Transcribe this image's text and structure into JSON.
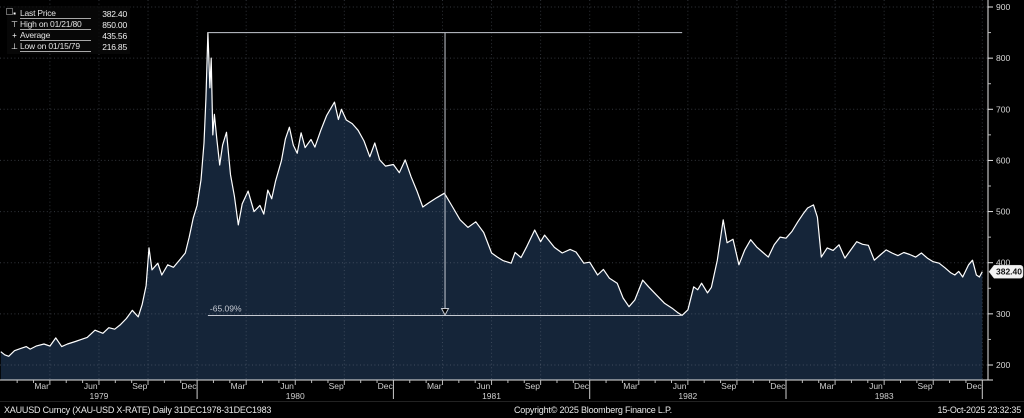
{
  "legend": {
    "rows": [
      {
        "icon": "last-price-marker",
        "glyph": "▪",
        "label": "Last Price",
        "value": "382.40"
      },
      {
        "icon": "high-marker",
        "glyph": "⊤",
        "label": "High on 01/21/80",
        "value": "850.00"
      },
      {
        "icon": "average-marker",
        "glyph": "+",
        "label": "Average",
        "value": "435.56"
      },
      {
        "icon": "low-marker",
        "glyph": "⊥",
        "label": "Low on 01/15/79",
        "value": "216.85"
      }
    ]
  },
  "chart_data": {
    "type": "area",
    "title": "XAUUSD Curncy (XAU-USD X-RATE)",
    "period": "Daily 31DEC1978-31DEC1983",
    "colors": {
      "line": "#ffffff",
      "fill": "#152539",
      "grid": "#7a8290",
      "axis": "#d9d9d9",
      "annotation": "#c6cad2"
    },
    "x_axis": {
      "months": [
        "Mar",
        "Jun",
        "Sep",
        "Dec",
        "Mar",
        "Jun",
        "Sep",
        "Dec",
        "Mar",
        "Jun",
        "Sep",
        "Dec",
        "Mar",
        "Jun",
        "Sep",
        "Dec",
        "Mar",
        "Jun",
        "Sep",
        "Dec"
      ],
      "years": [
        "1979",
        "1980",
        "1981",
        "1982",
        "1983"
      ]
    },
    "y_axis": {
      "ticks": [
        200,
        300,
        400,
        500,
        600,
        700,
        800,
        900
      ],
      "minor_ticks": [
        250,
        350,
        450,
        550,
        650,
        750,
        850
      ],
      "range": [
        198,
        905
      ]
    },
    "last_price": {
      "price": 382.4,
      "label": "382.40"
    },
    "annotation": {
      "label": "-65.09%",
      "high_price": 850,
      "low_price": 296.8,
      "from_t": 1.055,
      "to_t": 3.471
    },
    "stats": {
      "last": 382.4,
      "high": 850.0,
      "high_date": "01/21/80",
      "average": 435.56,
      "low": 216.85,
      "low_date": "01/15/79"
    },
    "series": [
      {
        "name": "XAUUSD",
        "points": [
          [
            0,
            226
          ],
          [
            0.02,
            220
          ],
          [
            0.04,
            217
          ],
          [
            0.07,
            228
          ],
          [
            0.1,
            232
          ],
          [
            0.13,
            236
          ],
          [
            0.15,
            231
          ],
          [
            0.18,
            237
          ],
          [
            0.22,
            241
          ],
          [
            0.25,
            237
          ],
          [
            0.28,
            253
          ],
          [
            0.31,
            236
          ],
          [
            0.34,
            241
          ],
          [
            0.38,
            246
          ],
          [
            0.41,
            250
          ],
          [
            0.44,
            254
          ],
          [
            0.48,
            268
          ],
          [
            0.52,
            262
          ],
          [
            0.55,
            273
          ],
          [
            0.58,
            270
          ],
          [
            0.61,
            279
          ],
          [
            0.64,
            291
          ],
          [
            0.67,
            307
          ],
          [
            0.7,
            294
          ],
          [
            0.72,
            318
          ],
          [
            0.74,
            355
          ],
          [
            0.755,
            429
          ],
          [
            0.77,
            386
          ],
          [
            0.8,
            399
          ],
          [
            0.82,
            376
          ],
          [
            0.85,
            396
          ],
          [
            0.88,
            391
          ],
          [
            0.91,
            405
          ],
          [
            0.94,
            419
          ],
          [
            0.96,
            450
          ],
          [
            0.98,
            487
          ],
          [
            1.0,
            512
          ],
          [
            1.02,
            562
          ],
          [
            1.035,
            634
          ],
          [
            1.045,
            720
          ],
          [
            1.055,
            850
          ],
          [
            1.065,
            742
          ],
          [
            1.072,
            800
          ],
          [
            1.08,
            650
          ],
          [
            1.088,
            690
          ],
          [
            1.1,
            644
          ],
          [
            1.115,
            591
          ],
          [
            1.13,
            630
          ],
          [
            1.15,
            655
          ],
          [
            1.17,
            572
          ],
          [
            1.19,
            530
          ],
          [
            1.21,
            474
          ],
          [
            1.23,
            515
          ],
          [
            1.26,
            540
          ],
          [
            1.29,
            500
          ],
          [
            1.32,
            512
          ],
          [
            1.34,
            495
          ],
          [
            1.36,
            542
          ],
          [
            1.38,
            525
          ],
          [
            1.4,
            560
          ],
          [
            1.43,
            600
          ],
          [
            1.45,
            642
          ],
          [
            1.47,
            665
          ],
          [
            1.49,
            630
          ],
          [
            1.51,
            614
          ],
          [
            1.53,
            654
          ],
          [
            1.55,
            625
          ],
          [
            1.58,
            641
          ],
          [
            1.6,
            626
          ],
          [
            1.63,
            659
          ],
          [
            1.66,
            688
          ],
          [
            1.7,
            714
          ],
          [
            1.72,
            680
          ],
          [
            1.735,
            700
          ],
          [
            1.76,
            679
          ],
          [
            1.79,
            672
          ],
          [
            1.82,
            659
          ],
          [
            1.85,
            638
          ],
          [
            1.88,
            607
          ],
          [
            1.905,
            634
          ],
          [
            1.93,
            601
          ],
          [
            1.96,
            589
          ],
          [
            2.0,
            592
          ],
          [
            2.03,
            576
          ],
          [
            2.06,
            601
          ],
          [
            2.09,
            568
          ],
          [
            2.12,
            540
          ],
          [
            2.15,
            509
          ],
          [
            2.18,
            517
          ],
          [
            2.22,
            527
          ],
          [
            2.26,
            536
          ],
          [
            2.3,
            510
          ],
          [
            2.34,
            484
          ],
          [
            2.38,
            469
          ],
          [
            2.42,
            480
          ],
          [
            2.46,
            459
          ],
          [
            2.5,
            419
          ],
          [
            2.53,
            411
          ],
          [
            2.56,
            404
          ],
          [
            2.6,
            399
          ],
          [
            2.62,
            420
          ],
          [
            2.65,
            410
          ],
          [
            2.68,
            432
          ],
          [
            2.72,
            464
          ],
          [
            2.75,
            441
          ],
          [
            2.77,
            454
          ],
          [
            2.82,
            430
          ],
          [
            2.86,
            419
          ],
          [
            2.9,
            426
          ],
          [
            2.93,
            421
          ],
          [
            2.97,
            399
          ],
          [
            3.0,
            401
          ],
          [
            3.04,
            376
          ],
          [
            3.07,
            387
          ],
          [
            3.1,
            370
          ],
          [
            3.14,
            360
          ],
          [
            3.17,
            331
          ],
          [
            3.2,
            314
          ],
          [
            3.23,
            327
          ],
          [
            3.27,
            366
          ],
          [
            3.3,
            353
          ],
          [
            3.34,
            337
          ],
          [
            3.38,
            321
          ],
          [
            3.42,
            311
          ],
          [
            3.45,
            302
          ],
          [
            3.47,
            297
          ],
          [
            3.5,
            308
          ],
          [
            3.53,
            353
          ],
          [
            3.55,
            347
          ],
          [
            3.57,
            360
          ],
          [
            3.6,
            341
          ],
          [
            3.62,
            352
          ],
          [
            3.65,
            405
          ],
          [
            3.68,
            484
          ],
          [
            3.7,
            439
          ],
          [
            3.73,
            446
          ],
          [
            3.76,
            396
          ],
          [
            3.79,
            425
          ],
          [
            3.82,
            445
          ],
          [
            3.85,
            431
          ],
          [
            3.88,
            421
          ],
          [
            3.91,
            411
          ],
          [
            3.94,
            435
          ],
          [
            3.97,
            450
          ],
          [
            4.0,
            448
          ],
          [
            4.03,
            461
          ],
          [
            4.06,
            480
          ],
          [
            4.09,
            497
          ],
          [
            4.11,
            507
          ],
          [
            4.14,
            513
          ],
          [
            4.16,
            489
          ],
          [
            4.18,
            411
          ],
          [
            4.21,
            429
          ],
          [
            4.24,
            424
          ],
          [
            4.27,
            435
          ],
          [
            4.3,
            409
          ],
          [
            4.33,
            425
          ],
          [
            4.36,
            441
          ],
          [
            4.39,
            436
          ],
          [
            4.42,
            434
          ],
          [
            4.45,
            405
          ],
          [
            4.48,
            415
          ],
          [
            4.51,
            425
          ],
          [
            4.54,
            419
          ],
          [
            4.57,
            414
          ],
          [
            4.6,
            420
          ],
          [
            4.63,
            416
          ],
          [
            4.66,
            411
          ],
          [
            4.69,
            419
          ],
          [
            4.72,
            409
          ],
          [
            4.75,
            402
          ],
          [
            4.78,
            399
          ],
          [
            4.81,
            390
          ],
          [
            4.84,
            380
          ],
          [
            4.86,
            376
          ],
          [
            4.88,
            383
          ],
          [
            4.9,
            372
          ],
          [
            4.93,
            396
          ],
          [
            4.95,
            405
          ],
          [
            4.97,
            376
          ],
          [
            4.985,
            372
          ],
          [
            5.0,
            382.4
          ]
        ]
      }
    ]
  },
  "footer": {
    "left": "XAUUSD Curncy (XAU-USD X-RATE) Daily 31DEC1978-31DEC1983",
    "center": "Copyright© 2025 Bloomberg Finance L.P.",
    "right": "15-Oct-2025 23:32:35"
  }
}
